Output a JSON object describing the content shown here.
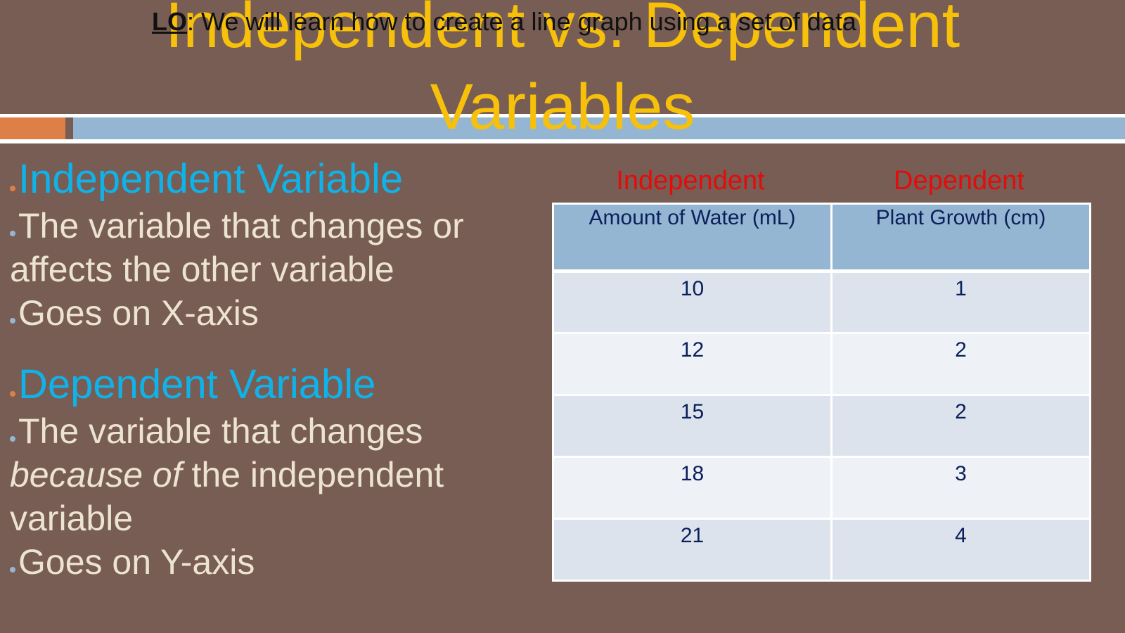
{
  "slide": {
    "title_line1": "Independent vs. Dependent",
    "title_line2": "Variables",
    "lo_label": "LO",
    "lo_text": ": We will learn how to create a line graph using a set of data",
    "colors": {
      "background": "#775d53",
      "title": "#f7c00a",
      "heading": "#0fb3ea",
      "body_text": "#ede3d2",
      "column_label": "#e50b0b",
      "accent_orange": "#dd8047",
      "accent_blue": "#94b6d2"
    }
  },
  "left": {
    "independent": {
      "heading": "Independent Variable",
      "point1": "The variable that changes or affects the other variable",
      "point2": "Goes on X-axis"
    },
    "dependent": {
      "heading": "Dependent Variable",
      "point1_a": "The variable that changes ",
      "point1_italic": "because of",
      "point1_b": " the independent variable",
      "point2": "Goes on Y-axis"
    }
  },
  "table": {
    "label_independent": "Independent",
    "label_dependent": "Dependent",
    "headers": [
      "Amount of Water (mL)",
      "Plant Growth (cm)"
    ],
    "rows": [
      [
        "10",
        "1"
      ],
      [
        "12",
        "2"
      ],
      [
        "15",
        "2"
      ],
      [
        "18",
        "3"
      ],
      [
        "21",
        "4"
      ]
    ]
  }
}
